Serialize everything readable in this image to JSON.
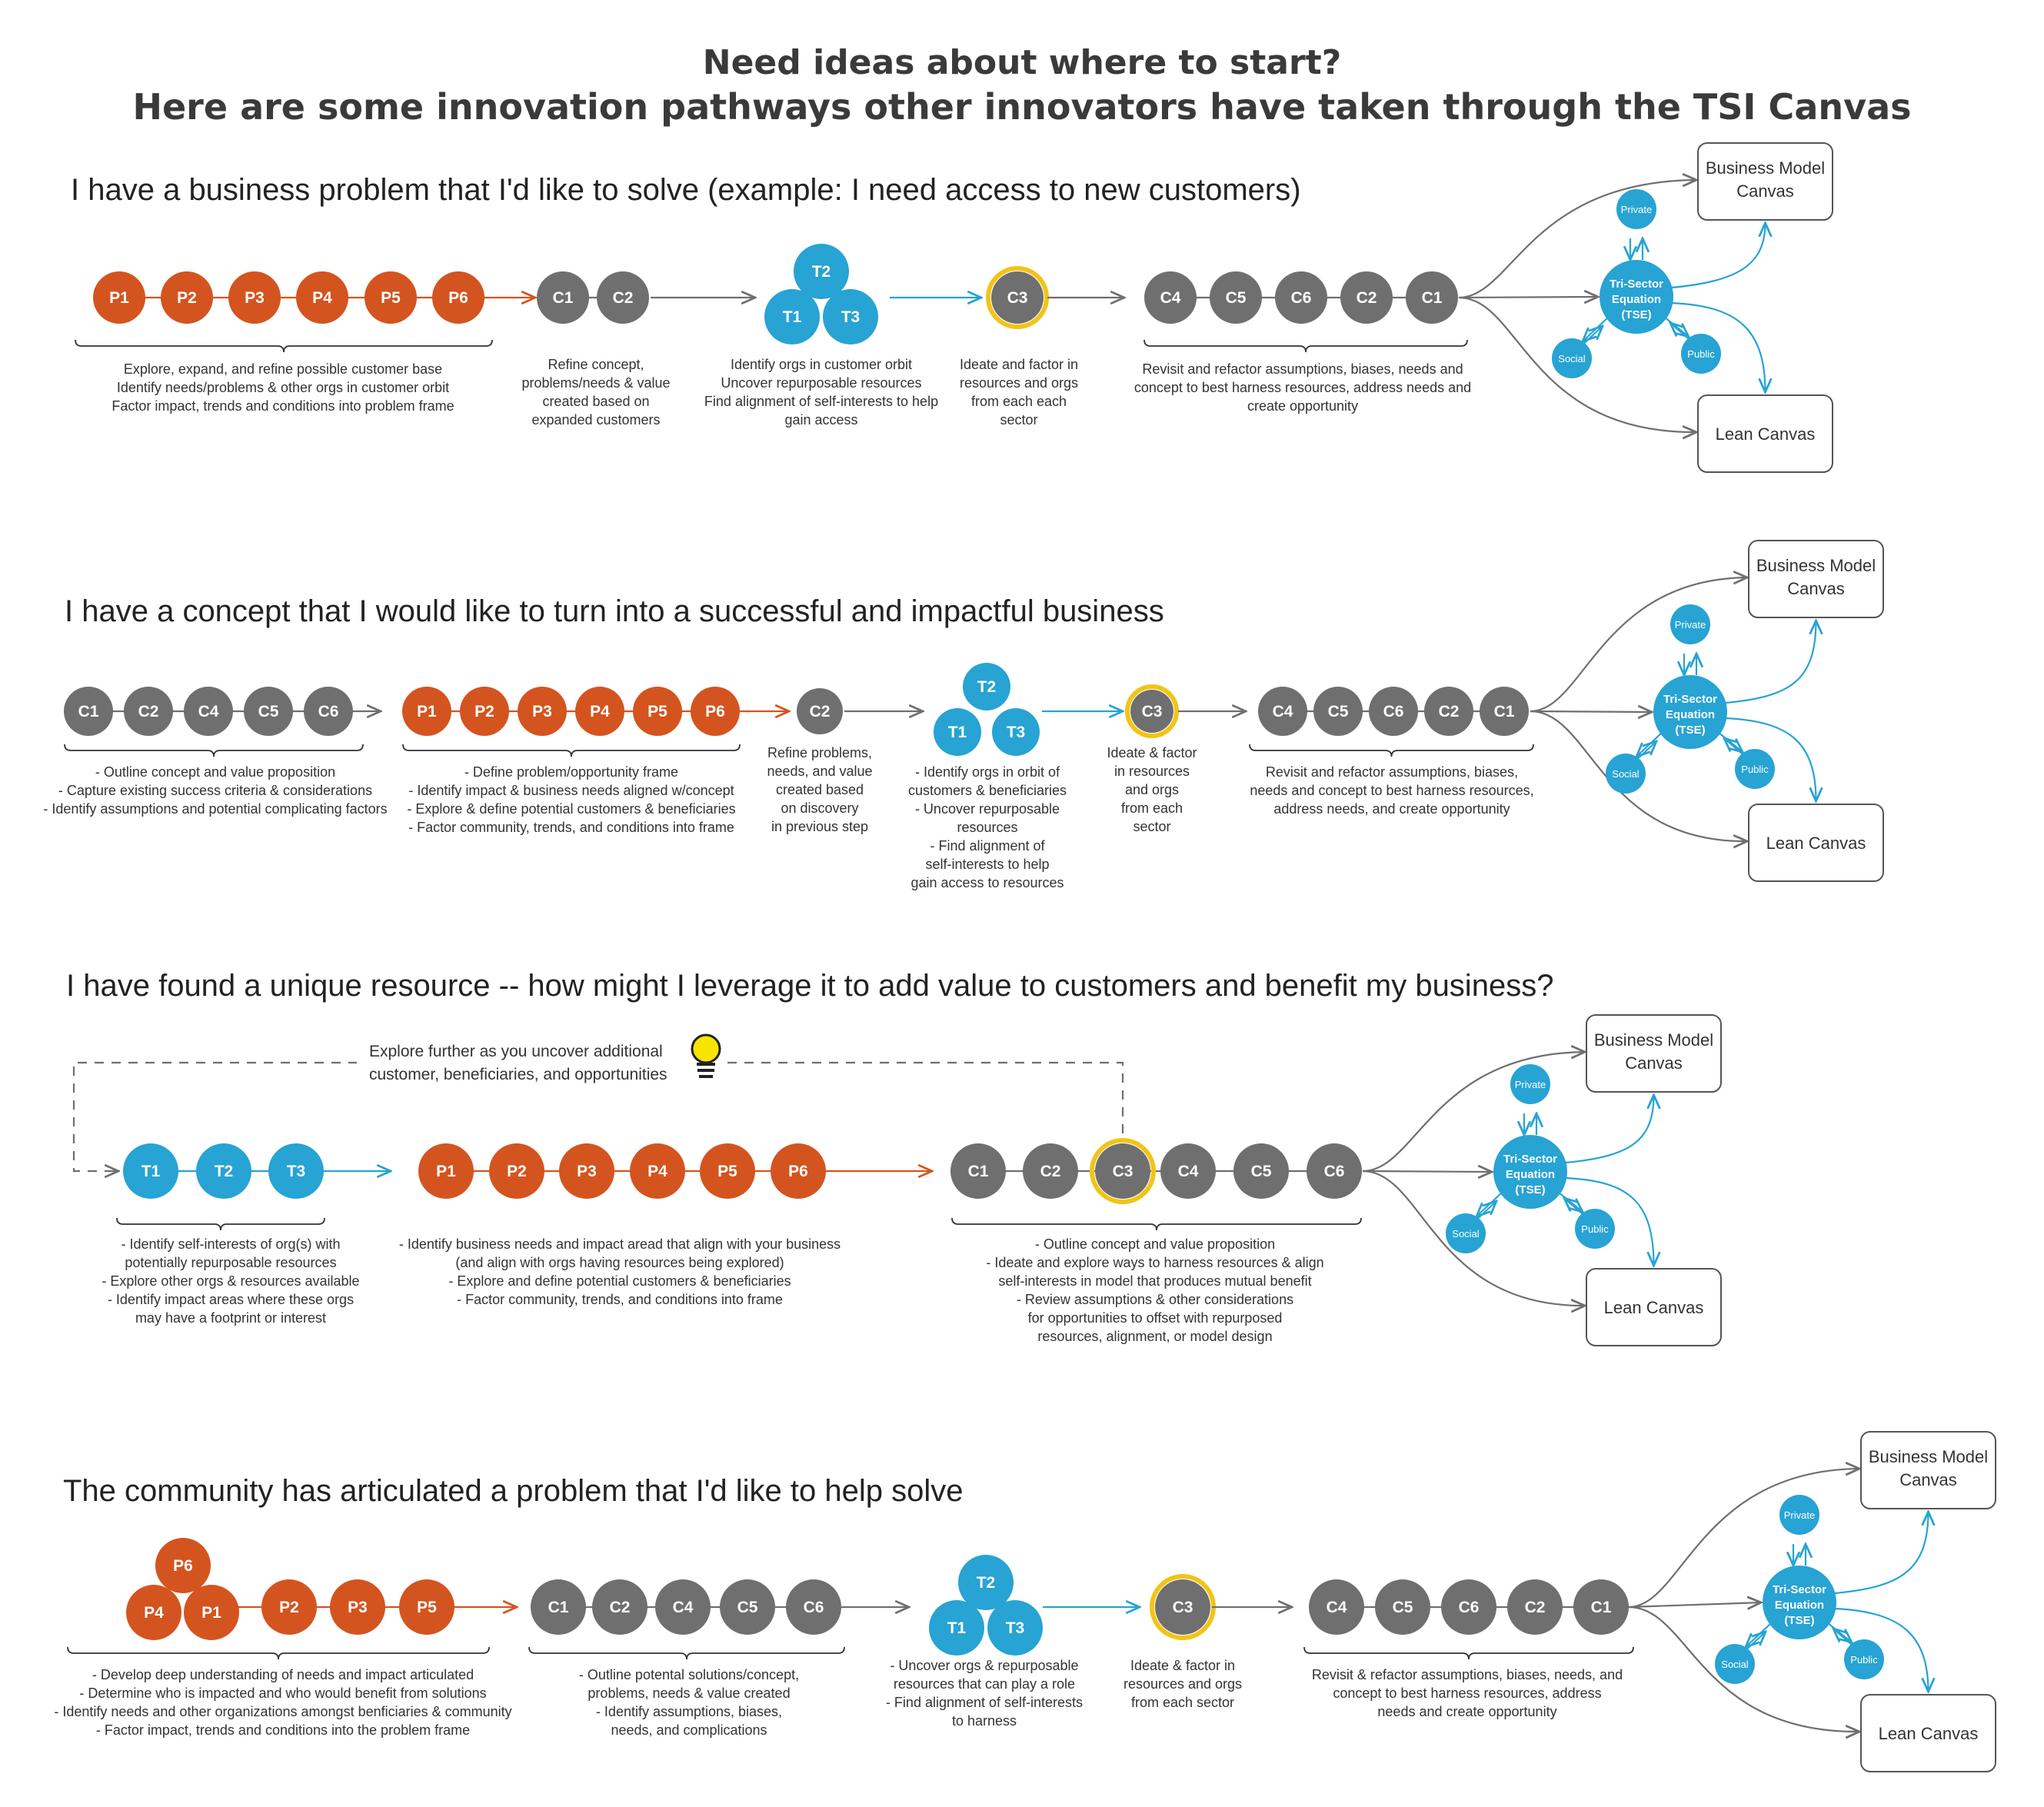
{
  "title": "Need ideas about where to start?",
  "subtitle": "Here are some innovation pathways other innovators have taken through the TSI Canvas",
  "colors": {
    "problem": "#d4541f",
    "concept": "#6f6f6f",
    "tri_sector": "#27a3d4",
    "highlight_ring": "#f2c417",
    "arrow_gray": "#6f6f6f",
    "bulb": "#f7e400"
  },
  "tse": {
    "center": [
      "Tri-Sector",
      "Equation",
      "(TSE)"
    ],
    "private": "Private",
    "social": "Social",
    "public": "Public"
  },
  "outputs": {
    "business_model_canvas": [
      "Business Model",
      "Canvas"
    ],
    "lean_canvas": "Lean Canvas"
  },
  "rows": [
    {
      "title": "I have a business problem that I'd like to solve (example: I need access to new customers)",
      "groups": [
        {
          "nodes": [
            "P1",
            "P2",
            "P3",
            "P4",
            "P5",
            "P6"
          ],
          "desc": [
            "Explore, expand, and refine possible customer base",
            "Identify needs/problems & other orgs in customer orbit",
            "Factor impact, trends and conditions into problem frame"
          ]
        },
        {
          "nodes": [
            "C1",
            "C2"
          ],
          "desc": [
            "Refine concept,",
            "problems/needs & value",
            "created based  on",
            "expanded customers"
          ]
        },
        {
          "nodes": [
            "T2",
            "T1",
            "T3"
          ],
          "desc": [
            "Identify orgs in customer orbit",
            "Uncover repurposable resources",
            "Find alignment of self-interests to help",
            "gain access"
          ]
        },
        {
          "nodes": [
            "C3"
          ],
          "desc": [
            "Ideate and  factor in",
            "resources and orgs",
            "from each each",
            "sector"
          ]
        },
        {
          "nodes": [
            "C4",
            "C5",
            "C6",
            "C2",
            "C1"
          ],
          "desc": [
            "Revisit and refactor assumptions, biases, needs and",
            "concept to best harness resources, address needs and",
            "create opportunity"
          ]
        }
      ]
    },
    {
      "title": "I have a concept that I would like to turn into a successful and impactful business",
      "groups": [
        {
          "nodes": [
            "C1",
            "C2",
            "C4",
            "C5",
            "C6"
          ],
          "desc": [
            "- Outline concept and value proposition",
            "- Capture existing success criteria & considerations",
            "- Identify assumptions and potential complicating factors"
          ]
        },
        {
          "nodes": [
            "P1",
            "P2",
            "P3",
            "P4",
            "P5",
            "P6"
          ],
          "desc": [
            "- Define problem/opportunity frame",
            "- Identify impact & business needs aligned w/concept",
            "- Explore & define potential customers & beneficiaries",
            "- Factor community, trends, and conditions into frame"
          ]
        },
        {
          "nodes": [
            "C2"
          ],
          "desc": [
            "Refine problems,",
            "needs, and value",
            "created based",
            "on discovery",
            "in previous step"
          ]
        },
        {
          "nodes": [
            "T2",
            "T1",
            "T3"
          ],
          "desc": [
            "- Identify orgs in orbit of",
            "customers & beneficiaries",
            "- Uncover repurposable",
            "resources",
            "- Find alignment of",
            "self-interests to help",
            "gain access to resources"
          ]
        },
        {
          "nodes": [
            "C3"
          ],
          "desc": [
            "Ideate & factor",
            "in resources",
            "and orgs",
            "from each",
            "sector"
          ]
        },
        {
          "nodes": [
            "C4",
            "C5",
            "C6",
            "C2",
            "C1"
          ],
          "desc": [
            "Revisit and refactor assumptions, biases,",
            "needs and concept to best harness resources,",
            "address needs, and create opportunity"
          ]
        }
      ]
    },
    {
      "title": "I have found a unique resource -- how might I leverage it to add value to customers and benefit my business?",
      "loop_note": [
        "Explore further as you uncover additional",
        "customer, beneficiaries, and opportunities"
      ],
      "groups": [
        {
          "nodes": [
            "T1",
            "T2",
            "T3"
          ],
          "desc": [
            "- Identify self-interests of org(s) with",
            "potentially repurposable resources",
            "- Explore other orgs & resources available",
            "- Identify impact areas where these orgs",
            "may have a footprint or interest"
          ]
        },
        {
          "nodes": [
            "P1",
            "P2",
            "P3",
            "P4",
            "P5",
            "P6"
          ],
          "desc": [
            "- Identify business needs and impact aread that align with your business",
            "(and align with orgs having resources being explored)",
            "- Explore and define potential customers & beneficiaries",
            "- Factor community, trends, and conditions into frame"
          ]
        },
        {
          "nodes": [
            "C1",
            "C2",
            "C3",
            "C4",
            "C5",
            "C6"
          ],
          "desc": [
            "- Outline concept and value proposition",
            "- Ideate and explore ways to harness resources & align",
            "self-interests in model that produces mutual benefit",
            "- Review assumptions & other considerations",
            "for opportunities to offset with repurposed",
            "resources, alignment, or model design"
          ]
        }
      ]
    },
    {
      "title": "The community has articulated a problem that I'd like to help solve",
      "groups": [
        {
          "nodes": [
            "P6",
            "P4",
            "P1",
            "P2",
            "P3",
            "P5"
          ],
          "desc": [
            "- Develop deep understanding of needs and impact articulated",
            "- Determine who is impacted and who would benefit from solutions",
            "- Identify needs and other organizations amongst benficiaries & community",
            "- Factor impact, trends and conditions into the problem frame"
          ]
        },
        {
          "nodes": [
            "C1",
            "C2",
            "C4",
            "C5",
            "C6"
          ],
          "desc": [
            "- Outline potental solutions/concept,",
            "problems, needs & value created",
            "- Identify assumptions, biases,",
            "needs, and complications"
          ]
        },
        {
          "nodes": [
            "T2",
            "T1",
            "T3"
          ],
          "desc": [
            "- Uncover orgs & repurposable",
            "resources that can play a role",
            "- Find alignment of self-interests",
            "to harness"
          ]
        },
        {
          "nodes": [
            "C3"
          ],
          "desc": [
            "Ideate & factor in",
            "resources and orgs",
            "from each sector"
          ]
        },
        {
          "nodes": [
            "C4",
            "C5",
            "C6",
            "C2",
            "C1"
          ],
          "desc": [
            "Revisit & refactor assumptions, biases, needs, and",
            "concept to best harness resources, address",
            "needs and create opportunity"
          ]
        }
      ]
    }
  ]
}
